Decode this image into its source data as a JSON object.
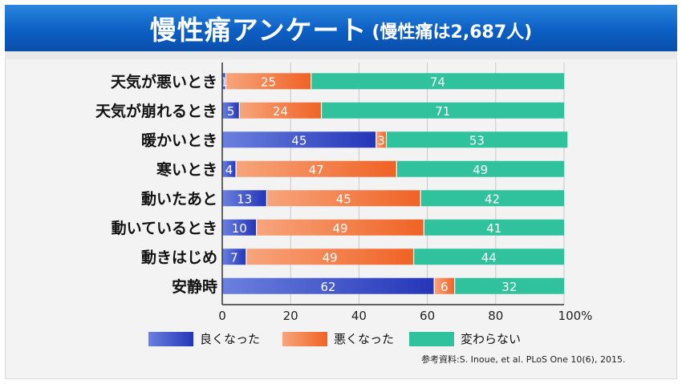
{
  "header": {
    "title": "慢性痛アンケート",
    "subtitle": "(慢性痛は2,687人)"
  },
  "colors": {
    "good": "#3d54c9",
    "bad": "#f47a45",
    "same": "#2fc29c"
  },
  "chart_data": {
    "type": "bar",
    "orientation": "horizontal",
    "stacked": true,
    "categories": [
      "天気が悪いとき",
      "天気が崩れるとき",
      "暖かいとき",
      "寒いとき",
      "動いたあと",
      "動いているとき",
      "動きはじめ",
      "安静時"
    ],
    "series": [
      {
        "name": "良くなった",
        "values": [
          1,
          5,
          45,
          4,
          13,
          10,
          7,
          62
        ]
      },
      {
        "name": "悪くなった",
        "values": [
          25,
          24,
          3,
          47,
          45,
          49,
          49,
          6
        ]
      },
      {
        "name": "変わらない",
        "values": [
          74,
          71,
          53,
          49,
          42,
          41,
          44,
          32
        ]
      }
    ],
    "x_ticks": [
      "0",
      "20",
      "40",
      "60",
      "80",
      "100%"
    ],
    "xlim": [
      0,
      100
    ],
    "grid": true,
    "legend": "bottom"
  },
  "source": "参考資料:S. Inoue, et al. PLoS One 10(6), 2015."
}
